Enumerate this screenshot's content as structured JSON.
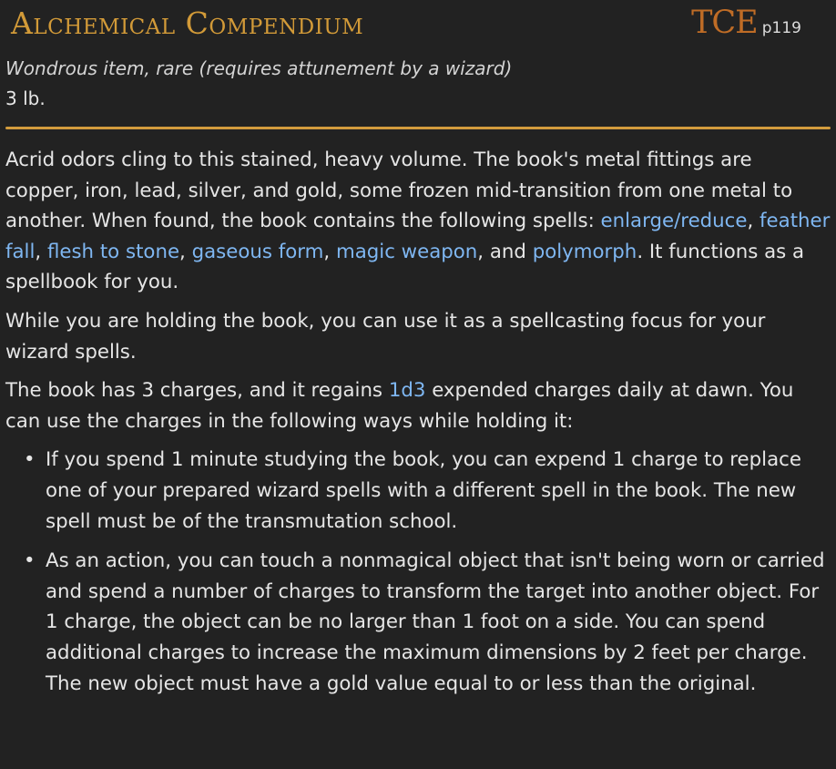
{
  "header": {
    "title": "Alchemical Compendium",
    "source_abbr": "TCE",
    "source_page": "p119"
  },
  "meta": {
    "subtitle": "Wondrous item, rare (requires attunement by a wizard)",
    "weight": "3 lb."
  },
  "description": {
    "p1_intro": "Acrid odors cling to this stained, heavy volume. The book's metal fittings are copper, iron, lead, silver, and gold, some frozen mid-transition from one metal to another. When found, the book contains the following spells: ",
    "spells": [
      "enlarge/reduce",
      "feather fall",
      "flesh to stone",
      "gaseous form",
      "magic weapon",
      "polymorph"
    ],
    "sep": ", ",
    "sep_and": ", and ",
    "p1_outro": ". It functions as a spellbook for you.",
    "p2": "While you are holding the book, you can use it as a spellcasting focus for your wizard spells.",
    "p3_before": "The book has 3 charges, and it regains ",
    "p3_dice": "1d3",
    "p3_after": " expended charges daily at dawn. You can use the charges in the following ways while holding it:",
    "bullet_symbol": "•",
    "bullets": [
      "If you spend 1 minute studying the book, you can expend 1 charge to replace one of your prepared wizard spells with a different spell in the book. The new spell must be of the transmutation school.",
      "As an action, you can touch a nonmagical object that isn't being worn or carried and spend a number of charges to transform the target into another object. For 1 charge, the object can be no larger than 1 foot on a side. You can spend additional charges to increase the maximum dimensions by 2 feet per charge. The new object must have a gold value equal to or less than the original."
    ]
  },
  "colors": {
    "background": "#222222",
    "title": "#d29a38",
    "source_abbr": "#bf6c26",
    "divider": "#d39c3d",
    "link": "#7fb7f2",
    "text": "#e6e6e6"
  }
}
